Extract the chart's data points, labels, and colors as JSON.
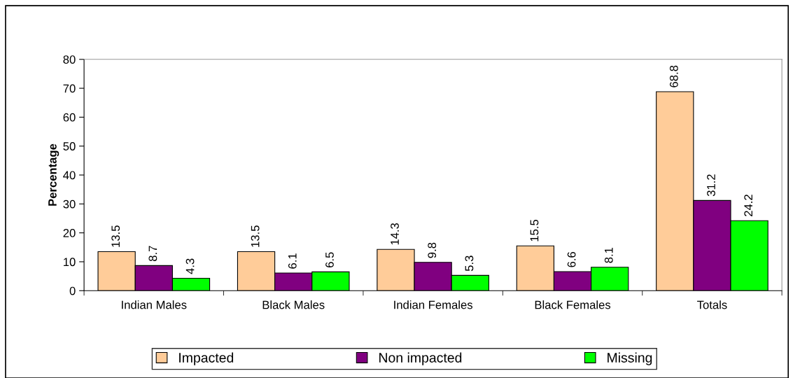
{
  "chart_data": {
    "type": "bar",
    "ylabel": "Percentage",
    "categories": [
      "Indian Males",
      "Black Males",
      "Indian Females",
      "Black Females",
      "Totals"
    ],
    "series": [
      {
        "name": "Impacted",
        "color": "#ffcc99",
        "values": [
          13.5,
          13.5,
          14.3,
          15.5,
          68.8
        ]
      },
      {
        "name": "Non impacted",
        "color": "#800080",
        "values": [
          8.7,
          6.1,
          9.8,
          6.6,
          31.2
        ]
      },
      {
        "name": "Missing",
        "color": "#00ff00",
        "values": [
          4.3,
          6.5,
          5.3,
          8.1,
          24.2
        ]
      }
    ],
    "ylim": [
      0,
      80
    ],
    "yticks": [
      0,
      10,
      20,
      30,
      40,
      50,
      60,
      70,
      80
    ],
    "data_labels": true,
    "grid": false,
    "legend": "bottom"
  }
}
